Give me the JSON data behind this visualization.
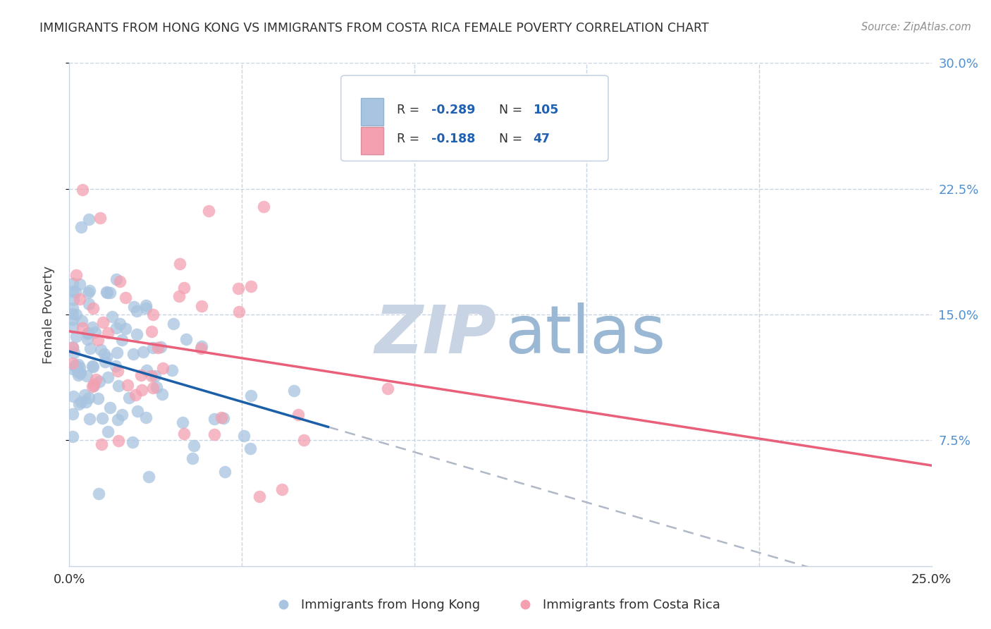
{
  "title": "IMMIGRANTS FROM HONG KONG VS IMMIGRANTS FROM COSTA RICA FEMALE POVERTY CORRELATION CHART",
  "source": "Source: ZipAtlas.com",
  "ylabel": "Female Poverty",
  "x_min": 0.0,
  "x_max": 0.25,
  "y_min": 0.0,
  "y_max": 0.3,
  "hk_R": -0.289,
  "hk_N": 105,
  "cr_R": -0.188,
  "cr_N": 47,
  "hk_color": "#a8c4e0",
  "cr_color": "#f4a0b0",
  "hk_line_color": "#1a5fa8",
  "cr_line_color": "#e8607a",
  "dashed_line_color": "#b0b8c8",
  "watermark_zip_color": "#c8d4e4",
  "watermark_atlas_color": "#9ab8d4",
  "legend_label_hk": "Immigrants from Hong Kong",
  "legend_label_cr": "Immigrants from Costa Rica",
  "background_color": "#ffffff",
  "grid_color": "#c8d4e4",
  "title_color": "#303030",
  "right_axis_color": "#5090d0",
  "seed": 42,
  "hk_intercept": 0.128,
  "hk_slope": -0.6,
  "cr_intercept": 0.14,
  "cr_slope": -0.32,
  "hk_line_end": 0.075,
  "cr_line_end": 0.25
}
